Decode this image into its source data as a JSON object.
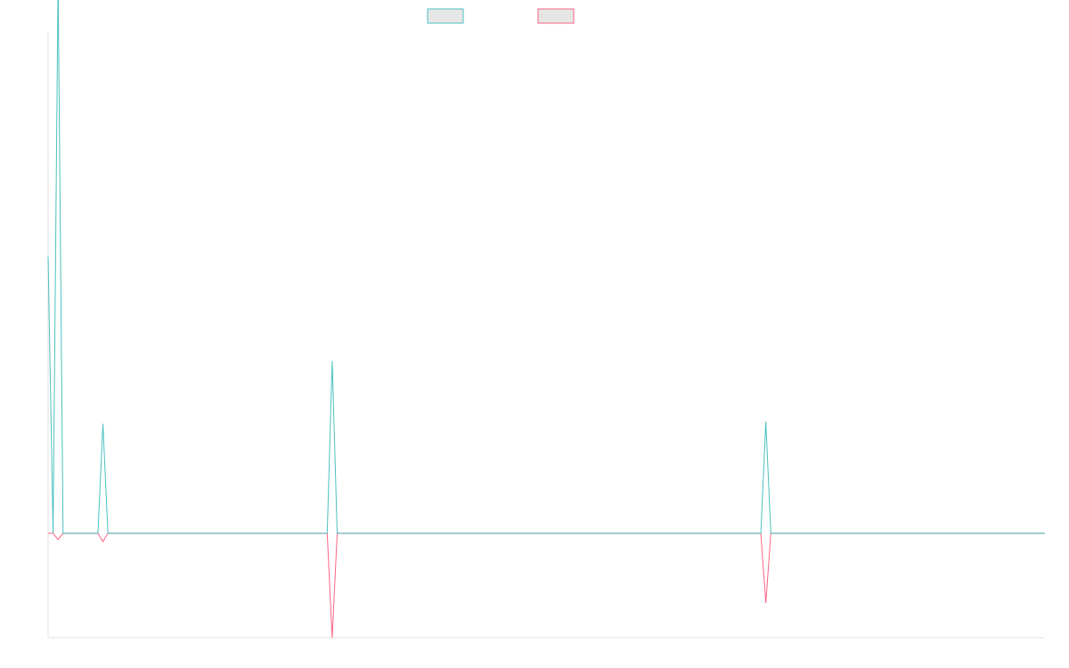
{
  "chart_data": {
    "type": "line",
    "x": [
      0,
      1,
      2,
      3,
      4,
      5,
      6,
      7,
      8,
      9,
      10,
      11,
      12,
      13,
      14,
      15,
      16,
      17,
      18,
      19,
      20,
      21,
      22,
      23,
      24,
      25,
      26,
      27,
      28,
      29,
      30,
      31,
      32,
      33,
      34,
      35,
      36,
      37,
      38,
      39,
      40,
      41,
      42,
      43,
      44,
      45,
      46,
      47,
      48,
      49,
      50,
      51,
      52,
      53,
      54,
      55,
      56,
      57,
      58,
      59,
      60,
      61,
      62,
      63,
      64,
      65,
      66,
      67,
      68,
      69,
      70,
      71,
      72,
      73,
      74,
      75,
      76,
      77,
      78,
      79,
      80,
      81,
      82,
      83,
      84,
      85,
      86,
      87,
      88,
      89,
      90,
      91,
      92,
      93,
      94,
      95,
      96,
      97,
      98,
      99,
      100,
      101,
      102,
      103,
      104,
      105,
      106,
      107,
      108,
      109,
      110,
      111,
      112,
      113,
      114,
      115,
      116,
      117,
      118,
      119,
      120,
      121,
      122,
      123,
      124,
      125,
      126,
      127,
      128,
      129,
      130,
      131,
      132,
      133,
      134,
      135,
      136,
      137,
      138,
      139,
      140,
      141,
      142,
      143,
      144,
      145,
      146,
      147,
      148,
      149,
      150,
      151,
      152,
      153,
      154,
      155,
      156,
      157,
      158,
      159,
      160,
      161,
      162,
      163,
      164,
      165,
      166,
      167,
      168,
      169,
      170,
      171,
      172,
      173,
      174,
      175,
      176,
      177,
      178,
      179,
      180,
      181,
      182,
      183,
      184,
      185,
      186,
      187,
      188,
      189,
      190,
      191,
      192,
      193,
      194,
      195,
      196,
      197,
      198,
      199,
      200
    ],
    "series": [
      {
        "values": [
          2.65,
          0,
          5.3,
          0,
          0,
          0,
          0,
          0,
          0,
          0,
          0,
          1.05,
          0,
          0,
          0,
          0,
          0,
          0,
          0,
          0,
          0,
          0,
          0,
          0,
          0,
          0,
          0,
          0,
          0,
          0,
          0,
          0,
          0,
          0,
          0,
          0,
          0,
          0,
          0,
          0,
          0,
          0,
          0,
          0,
          0,
          0,
          0,
          0,
          0,
          0,
          0,
          0,
          0,
          0,
          0,
          0,
          0,
          1.65,
          0,
          0,
          0,
          0,
          0,
          0,
          0,
          0,
          0,
          0,
          0,
          0,
          0,
          0,
          0,
          0,
          0,
          0,
          0,
          0,
          0,
          0,
          0,
          0,
          0,
          0,
          0,
          0,
          0,
          0,
          0,
          0,
          0,
          0,
          0,
          0,
          0,
          0,
          0,
          0,
          0,
          0,
          0,
          0,
          0,
          0,
          0,
          0,
          0,
          0,
          0,
          0,
          0,
          0,
          0,
          0,
          0,
          0,
          0,
          0,
          0,
          0,
          0,
          0,
          0,
          0,
          0,
          0,
          0,
          0,
          0,
          0,
          0,
          0,
          0,
          0,
          0,
          0,
          0,
          0,
          0,
          0,
          0,
          0,
          0,
          0,
          1.07,
          0,
          0,
          0,
          0,
          0,
          0,
          0,
          0,
          0,
          0,
          0,
          0,
          0,
          0,
          0,
          0,
          0,
          0,
          0,
          0,
          0,
          0,
          0,
          0,
          0,
          0,
          0,
          0,
          0,
          0,
          0,
          0,
          0,
          0,
          0,
          0,
          0,
          0,
          0,
          0,
          0,
          0,
          0,
          0,
          0,
          0,
          0,
          0,
          0,
          0,
          0,
          0,
          0,
          0,
          0,
          0
        ],
        "color": "#4bc0c0"
      },
      {
        "values": [
          0,
          0,
          -0.06,
          0,
          0,
          0,
          0,
          0,
          0,
          0,
          0,
          -0.08,
          0,
          0,
          0,
          0,
          0,
          0,
          0,
          0,
          0,
          0,
          0,
          0,
          0,
          0,
          0,
          0,
          0,
          0,
          0,
          0,
          0,
          0,
          0,
          0,
          0,
          0,
          0,
          0,
          0,
          0,
          0,
          0,
          0,
          0,
          0,
          0,
          0,
          0,
          0,
          0,
          0,
          0,
          0,
          0,
          0,
          -1.0,
          0,
          0,
          0,
          0,
          0,
          0,
          0,
          0,
          0,
          0,
          0,
          0,
          0,
          0,
          0,
          0,
          0,
          0,
          0,
          0,
          0,
          0,
          0,
          0,
          0,
          0,
          0,
          0,
          0,
          0,
          0,
          0,
          0,
          0,
          0,
          0,
          0,
          0,
          0,
          0,
          0,
          0,
          0,
          0,
          0,
          0,
          0,
          0,
          0,
          0,
          0,
          0,
          0,
          0,
          0,
          0,
          0,
          0,
          0,
          0,
          0,
          0,
          0,
          0,
          0,
          0,
          0,
          0,
          0,
          0,
          0,
          0,
          0,
          0,
          0,
          0,
          0,
          0,
          0,
          0,
          0,
          0,
          0,
          0,
          0,
          0,
          -0.67,
          0,
          0,
          0,
          0,
          0,
          0,
          0,
          0,
          0,
          0,
          0,
          0,
          0,
          0,
          0,
          0,
          0,
          0,
          0,
          0,
          0,
          0,
          0,
          0,
          0,
          0,
          0,
          0,
          0,
          0,
          0,
          0,
          0,
          0,
          0,
          0,
          0,
          0,
          0,
          0,
          0,
          0,
          0,
          0,
          0,
          0,
          0,
          0,
          0,
          0,
          0,
          0,
          0,
          0,
          0,
          0
        ],
        "color": "#ff6384"
      }
    ],
    "xlim": [
      0,
      200
    ],
    "ylim": [
      -1.0,
      4.8
    ],
    "legend_position": "top",
    "grid": false,
    "title": "",
    "xlabel": "",
    "ylabel": ""
  }
}
